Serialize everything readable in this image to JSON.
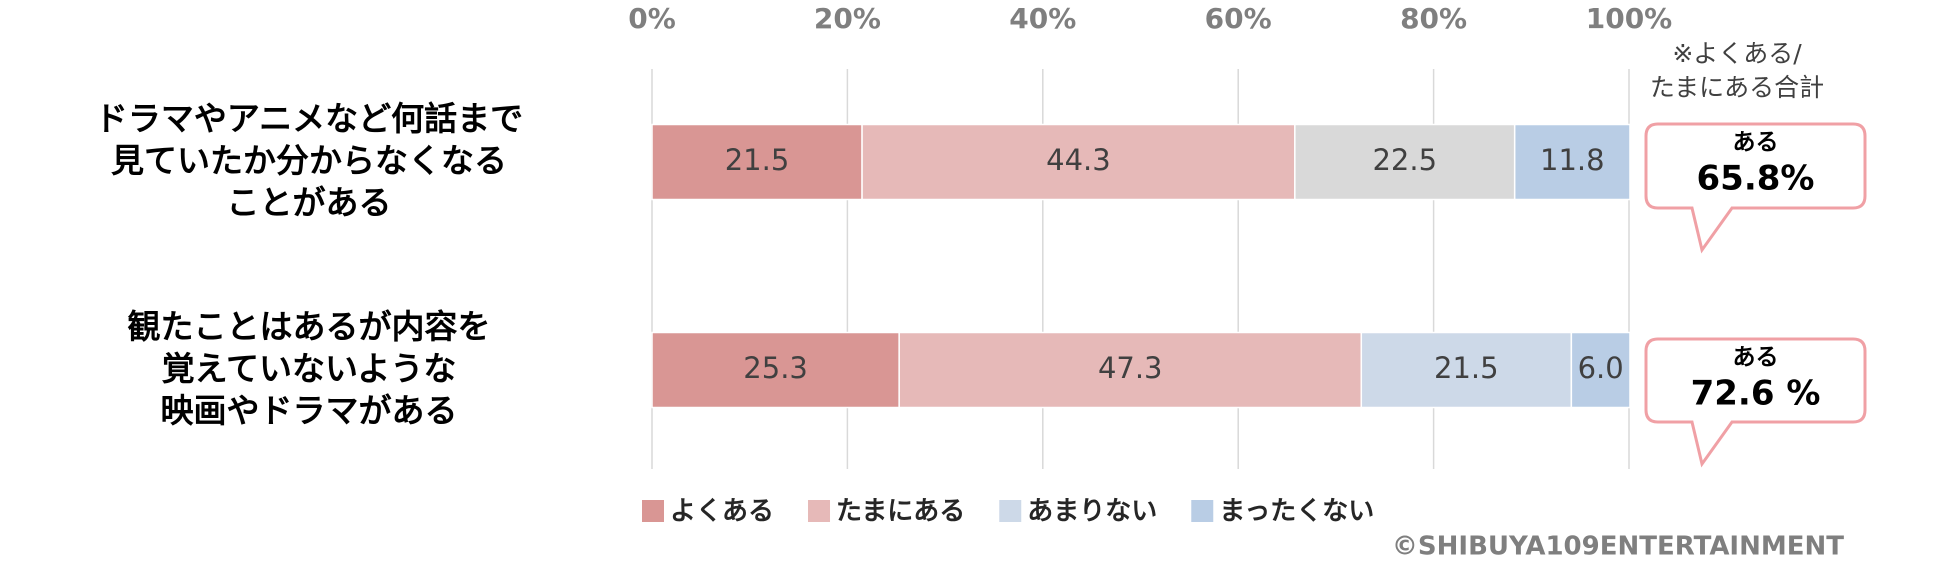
{
  "chart_data": {
    "type": "stacked-bar-horizontal",
    "categories": [
      "ドラマやアニメなど何話まで\n見ていたか分からなくなる\nことがある",
      "観たことはあるが内容を\n覚えていないような\n映画やドラマがある"
    ],
    "series": [
      {
        "name": "よくある",
        "color": "#d99694",
        "values": [
          21.5,
          25.3
        ]
      },
      {
        "name": "たまにある",
        "color": "#e6b9b8",
        "values": [
          44.3,
          47.3
        ]
      },
      {
        "name": "あまりない",
        "color": "#cdd9e8",
        "colors": [
          "#d9d9d9",
          "#cdd9e8"
        ],
        "values": [
          22.5,
          21.5
        ]
      },
      {
        "name": "まったくない",
        "color": "#b9cde5",
        "values": [
          11.8,
          6.0
        ],
        "value_labels": [
          "11.8",
          "6.0"
        ]
      }
    ],
    "xlim": [
      0,
      100
    ],
    "xticks": [
      {
        "value": 0,
        "label": "0%"
      },
      {
        "value": 20,
        "label": "20%"
      },
      {
        "value": 40,
        "label": "40%"
      },
      {
        "value": 60,
        "label": "60%"
      },
      {
        "value": 80,
        "label": "80%"
      },
      {
        "value": 100,
        "label": "100%"
      }
    ],
    "grid": true,
    "annotation": [
      "※よくある/",
      "たまにある合計"
    ],
    "callouts": [
      {
        "label": "ある",
        "text": "65.8%"
      },
      {
        "label": "ある",
        "text": "72.6 %"
      }
    ],
    "credit": "©SHIBUYA109ENTERTAINMENT"
  }
}
